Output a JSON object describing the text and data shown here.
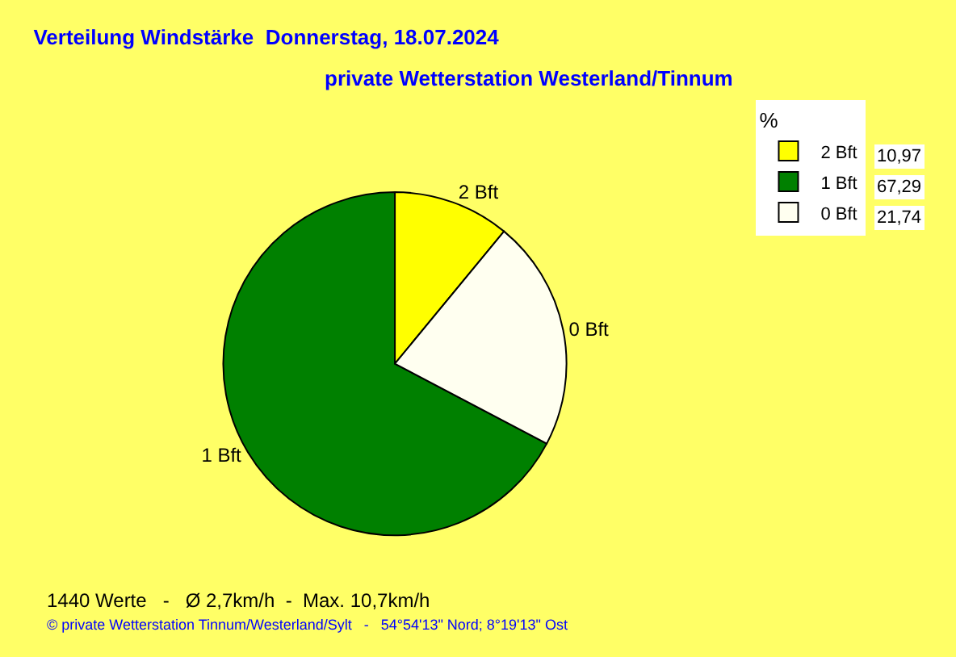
{
  "chart_data": {
    "type": "pie",
    "title": "Verteilung Windstärke  Donnerstag, 18.07.2024",
    "subtitle": "private Wetterstation Westerland/Tinnum",
    "categories": [
      "2 Bft",
      "1 Bft",
      "0 Bft"
    ],
    "values": [
      10.97,
      67.29,
      21.74
    ],
    "value_labels": [
      "10,97",
      "67,29",
      "21,74"
    ],
    "colors": [
      "#ffff00",
      "#008000",
      "#fffff0"
    ],
    "legend": "top right",
    "legend_title": "%",
    "annotations": [
      "1440 Werte   -   Ø 2,7km/h  -  Max. 10,7km/h",
      "© private Wetterstation Tinnum/Westerland/Sylt   -   54°54'13\" Nord; 8°19'13\" Ost"
    ]
  }
}
